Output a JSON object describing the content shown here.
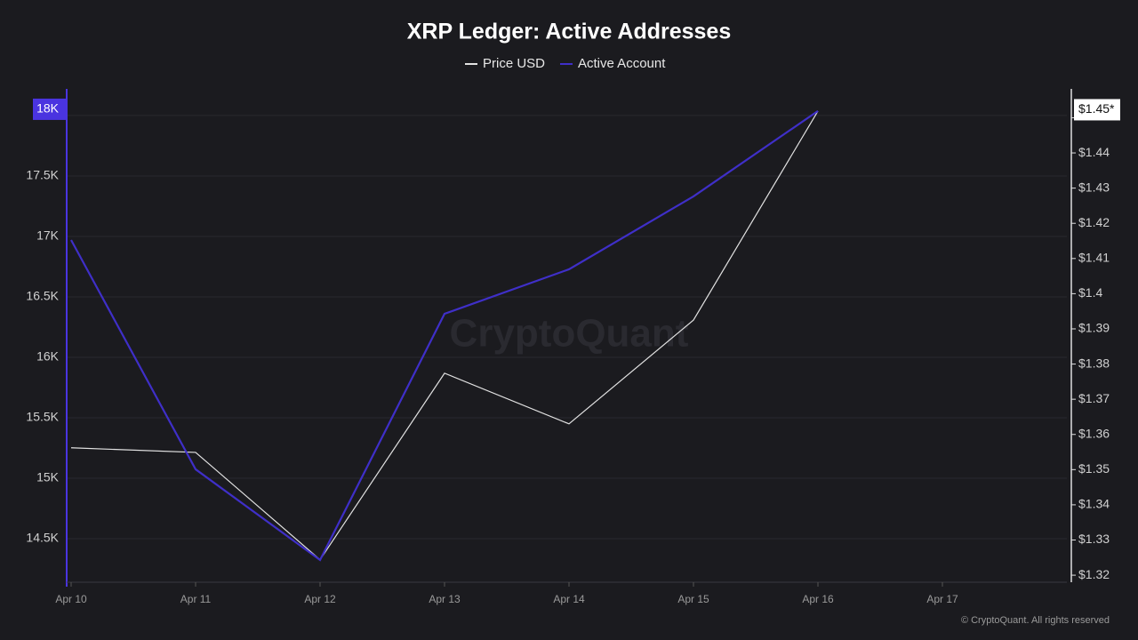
{
  "chart_data": {
    "type": "line",
    "title": "XRP Ledger: Active Addresses",
    "categories": [
      "Apr 10",
      "Apr 11",
      "Apr 12",
      "Apr 13",
      "Apr 14",
      "Apr 15",
      "Apr 16",
      "Apr 17"
    ],
    "series": [
      {
        "name": "Price USD",
        "color": "#e2e2e2",
        "axis": "y2",
        "values": [
          1.3562,
          1.3549,
          1.3244,
          1.3774,
          1.363,
          1.3925,
          1.4519,
          null
        ]
      },
      {
        "name": "Active Account",
        "color": "#3f2fc8",
        "values": [
          16970,
          15074,
          14324,
          16360,
          16728,
          17331,
          18037,
          null
        ]
      }
    ],
    "ylim": [
      14140,
      18220
    ],
    "yticks": [
      {
        "value": 14500,
        "label": "14.5K"
      },
      {
        "value": 15000,
        "label": "15K"
      },
      {
        "value": 15500,
        "label": "15.5K"
      },
      {
        "value": 16000,
        "label": "16K"
      },
      {
        "value": 16500,
        "label": "16.5K"
      },
      {
        "value": 17000,
        "label": "17K"
      },
      {
        "value": 17500,
        "label": "17.5K"
      },
      {
        "value": 18000,
        "label": "18K"
      }
    ],
    "y2lim": [
      1.318,
      1.4582
    ],
    "y2ticks": [
      {
        "value": 1.32,
        "label": "$1.32"
      },
      {
        "value": 1.33,
        "label": "$1.33"
      },
      {
        "value": 1.34,
        "label": "$1.34"
      },
      {
        "value": 1.35,
        "label": "$1.35"
      },
      {
        "value": 1.36,
        "label": "$1.36"
      },
      {
        "value": 1.37,
        "label": "$1.37"
      },
      {
        "value": 1.38,
        "label": "$1.38"
      },
      {
        "value": 1.39,
        "label": "$1.39"
      },
      {
        "value": 1.4,
        "label": "$1.4"
      },
      {
        "value": 1.41,
        "label": "$1.41"
      },
      {
        "value": 1.42,
        "label": "$1.42"
      },
      {
        "value": 1.43,
        "label": "$1.43"
      },
      {
        "value": 1.44,
        "label": "$1.44"
      },
      {
        "value": 1.45,
        "label": "$1.45*"
      }
    ],
    "grid": true,
    "watermark": "CryptoQuant",
    "footer": "© CryptoQuant. All rights reserved"
  }
}
